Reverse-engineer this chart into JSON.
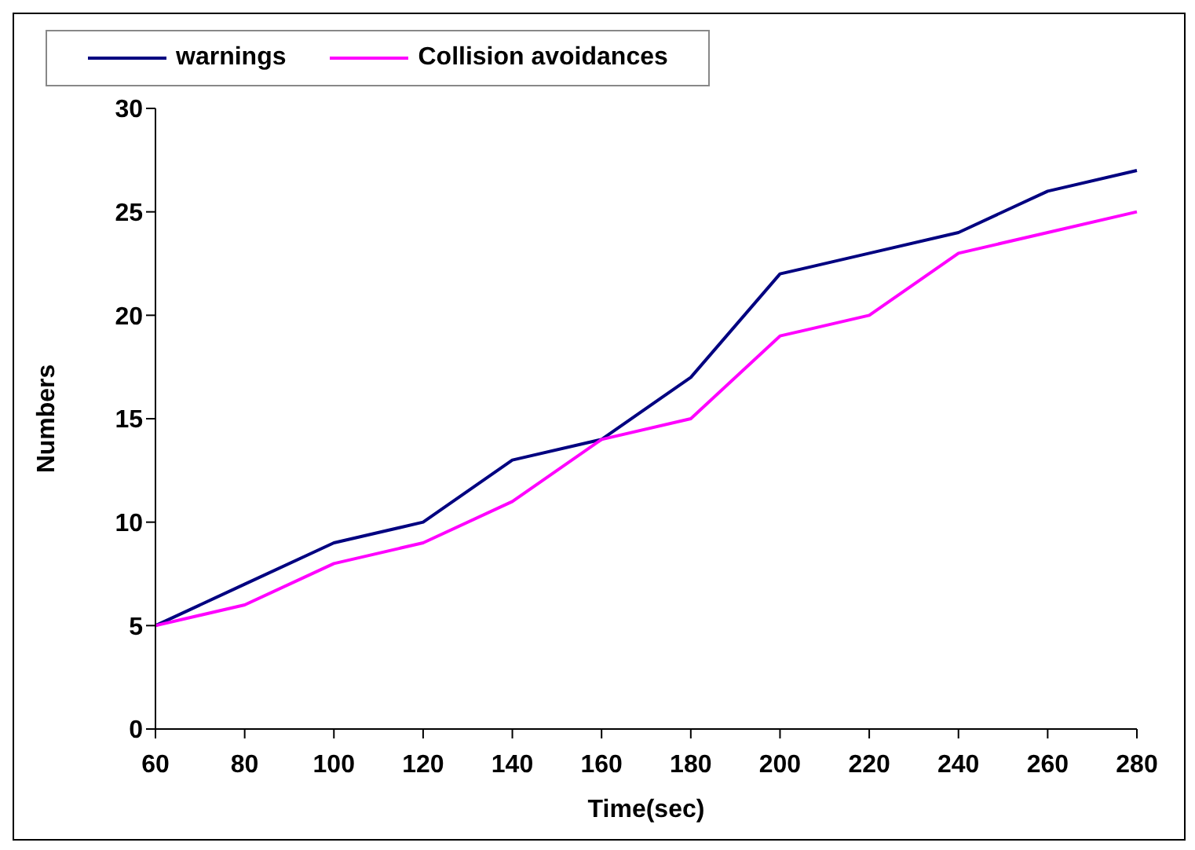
{
  "chart_data": {
    "type": "line",
    "xlabel": "Time(sec)",
    "ylabel": "Numbers",
    "categories": [
      "60",
      "80",
      "100",
      "120",
      "140",
      "160",
      "180",
      "200",
      "220",
      "240",
      "260",
      "280"
    ],
    "series": [
      {
        "name": "warnings",
        "color": "#000080",
        "values": [
          5,
          7,
          9,
          10,
          13,
          14,
          17,
          22,
          23,
          24,
          26,
          27
        ]
      },
      {
        "name": "Collision avoidances",
        "color": "#ff00ff",
        "values": [
          5,
          6,
          8,
          9,
          11,
          14,
          15,
          19,
          20,
          23,
          24,
          25
        ]
      }
    ],
    "ylim": [
      0,
      30
    ],
    "yticks": [
      0,
      5,
      10,
      15,
      20,
      25,
      30
    ],
    "grid": false,
    "legend": "top",
    "marker": "none",
    "line_style": "solid"
  }
}
